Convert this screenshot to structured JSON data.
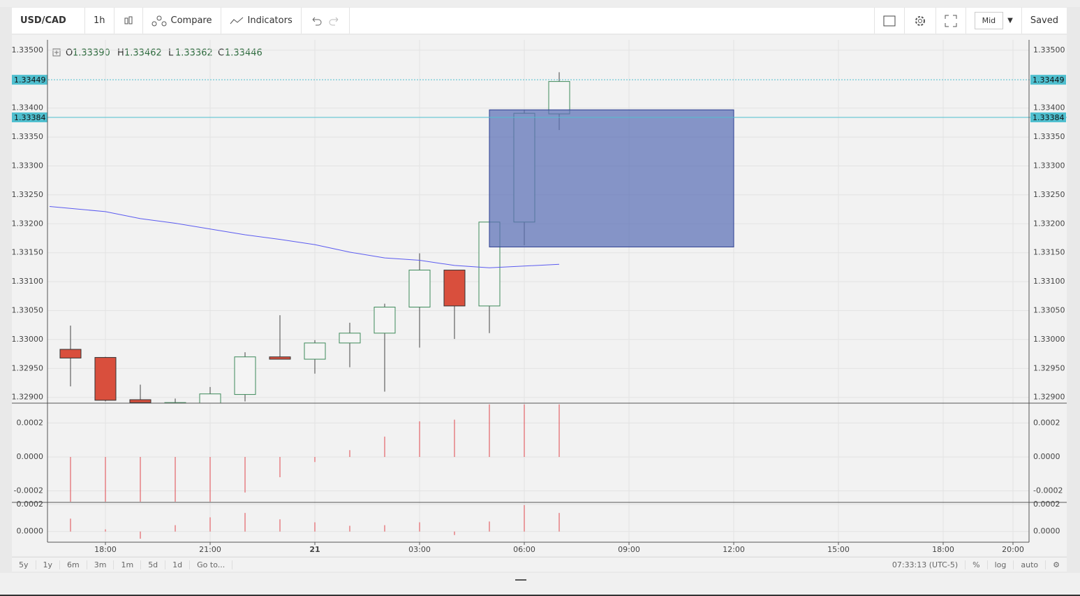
{
  "toolbar": {
    "symbol": "USD/CAD",
    "interval": "1h",
    "compare": "Compare",
    "indicators": "Indicators",
    "price_source": "Mid",
    "saved": "Saved"
  },
  "bottom_bar": {
    "ranges": [
      "5y",
      "1y",
      "6m",
      "3m",
      "1m",
      "5d",
      "1d"
    ],
    "goto": "Go to...",
    "clock": "07:33:13 (UTC-5)",
    "options": [
      "%",
      "log",
      "auto"
    ]
  },
  "legend": [
    {
      "label": "O",
      "value": "1.33390"
    },
    {
      "label": "H",
      "value": "1.33462"
    },
    {
      "label": "L",
      "value": "1.33362"
    },
    {
      "label": "C",
      "value": "1.33446"
    }
  ],
  "chart_data": [
    {
      "type": "candlestick",
      "x": [
        -7,
        -6,
        -5,
        -4,
        -3,
        -2,
        -1,
        0,
        1,
        2,
        3,
        4,
        5,
        6,
        7
      ],
      "open": [
        1.32983,
        1.32969,
        1.32896,
        1.3289,
        1.32888,
        1.32905,
        1.3297,
        1.32966,
        1.32994,
        1.33011,
        1.33056,
        1.3312,
        1.33058,
        1.33203,
        1.3339
      ],
      "high": [
        1.33024,
        1.3297,
        1.32922,
        1.32898,
        1.32918,
        1.32978,
        1.33042,
        1.32999,
        1.33029,
        1.33062,
        1.33149,
        1.3312,
        1.33203,
        1.33396,
        1.33462
      ],
      "low": [
        1.32919,
        1.32893,
        1.32885,
        1.32885,
        1.32885,
        1.32893,
        1.32966,
        1.32941,
        1.32952,
        1.3291,
        1.32986,
        1.33001,
        1.33011,
        1.33163,
        1.33362
      ],
      "close": [
        1.32968,
        1.32895,
        1.32891,
        1.32891,
        1.32906,
        1.3297,
        1.32966,
        1.32994,
        1.33011,
        1.33056,
        1.3312,
        1.33058,
        1.33203,
        1.33391,
        1.33446
      ],
      "up_color": "#f4f4f4",
      "up_border": "#3d8a5a",
      "down_color": "#d94f3d",
      "down_border": "#333333",
      "ma": {
        "x": [
          -7.6,
          -6,
          -5,
          -4,
          -3,
          -2,
          -1,
          0,
          1,
          2,
          3,
          4,
          5,
          6,
          7
        ],
        "values": [
          1.3323,
          1.33221,
          1.33209,
          1.33201,
          1.33191,
          1.33181,
          1.33173,
          1.33164,
          1.33151,
          1.33141,
          1.33137,
          1.33128,
          1.33124,
          1.33127,
          1.3313
        ],
        "color": "#5b5bf0"
      },
      "rectangle": {
        "x": [
          5,
          12
        ],
        "y": [
          1.3316,
          1.33397
        ],
        "color": "#5a6fb5",
        "border": "#2c3e90"
      },
      "price_lines": [
        {
          "value": 1.33449,
          "label": "1.33449",
          "color": "#4fbfcf",
          "dashed": true
        },
        {
          "value": 1.33384,
          "label": "1.33384",
          "color": "#4fbfcf",
          "dashed": false
        }
      ],
      "xlim": [
        -7.66,
        20.46
      ],
      "xticks": [
        {
          "value": -6,
          "label": "18:00"
        },
        {
          "value": -3,
          "label": "21:00"
        },
        {
          "value": 0,
          "label": "21"
        },
        {
          "value": 3,
          "label": "03:00"
        },
        {
          "value": 6,
          "label": "06:00"
        },
        {
          "value": 9,
          "label": "09:00"
        },
        {
          "value": 12,
          "label": "12:00"
        },
        {
          "value": 15,
          "label": "15:00"
        },
        {
          "value": 18,
          "label": "18:00"
        },
        {
          "value": 20,
          "label": "20:00"
        }
      ],
      "bold_xtick": 2,
      "ylim": [
        1.3289,
        1.33518
      ],
      "yticks": [
        {
          "value": 1.335,
          "label": "1.33500"
        },
        {
          "value": 1.334,
          "label": "1.33400"
        },
        {
          "value": 1.3335,
          "label": "1.33350"
        },
        {
          "value": 1.333,
          "label": "1.33300"
        },
        {
          "value": 1.3325,
          "label": "1.33250"
        },
        {
          "value": 1.332,
          "label": "1.33200"
        },
        {
          "value": 1.3315,
          "label": "1.33150"
        },
        {
          "value": 1.331,
          "label": "1.33100"
        },
        {
          "value": 1.3305,
          "label": "1.33050"
        },
        {
          "value": 1.33,
          "label": "1.33000"
        },
        {
          "value": 1.3295,
          "label": "1.32950"
        },
        {
          "value": 1.329,
          "label": "1.32900"
        }
      ],
      "grid": true
    },
    {
      "type": "histogram",
      "color": "#e0474c",
      "x": [
        -7,
        -6,
        -5,
        -4,
        -3,
        -2,
        -1,
        0,
        1,
        2,
        3,
        4,
        5,
        6,
        7
      ],
      "values": [
        -0.00027,
        -0.00027,
        -0.00027,
        -0.00027,
        -0.00027,
        -0.00021,
        -0.00012,
        -3e-05,
        4e-05,
        0.00012,
        0.00021,
        0.00022,
        0.00031,
        0.00031,
        0.00031
      ],
      "ylim": [
        -0.000264,
        0.000313
      ],
      "yticks": [
        0.0002,
        {
          "value": 0,
          "label": "0.0000"
        },
        -0.0002
      ],
      "grid": true
    },
    {
      "type": "histogram",
      "color": "#e0474c",
      "x": [
        -7,
        -6,
        -5,
        -4,
        -3,
        -2,
        -1,
        0,
        1,
        2,
        3,
        4,
        5,
        6,
        7
      ],
      "values": [
        9.5e-05,
        1.6e-05,
        -5.3e-05,
        4.7e-05,
        0.000105,
        0.000137,
        9e-05,
        6.8e-05,
        4.2e-05,
        4.7e-05,
        6.8e-05,
        -2.6e-05,
        7.4e-05,
        0.000195,
        0.000137
      ],
      "ylim": [
        -7.9e-05,
        0.00021
      ],
      "yticks": [
        0.0002,
        {
          "value": 0,
          "label": "0.0000"
        }
      ],
      "grid": true
    }
  ]
}
